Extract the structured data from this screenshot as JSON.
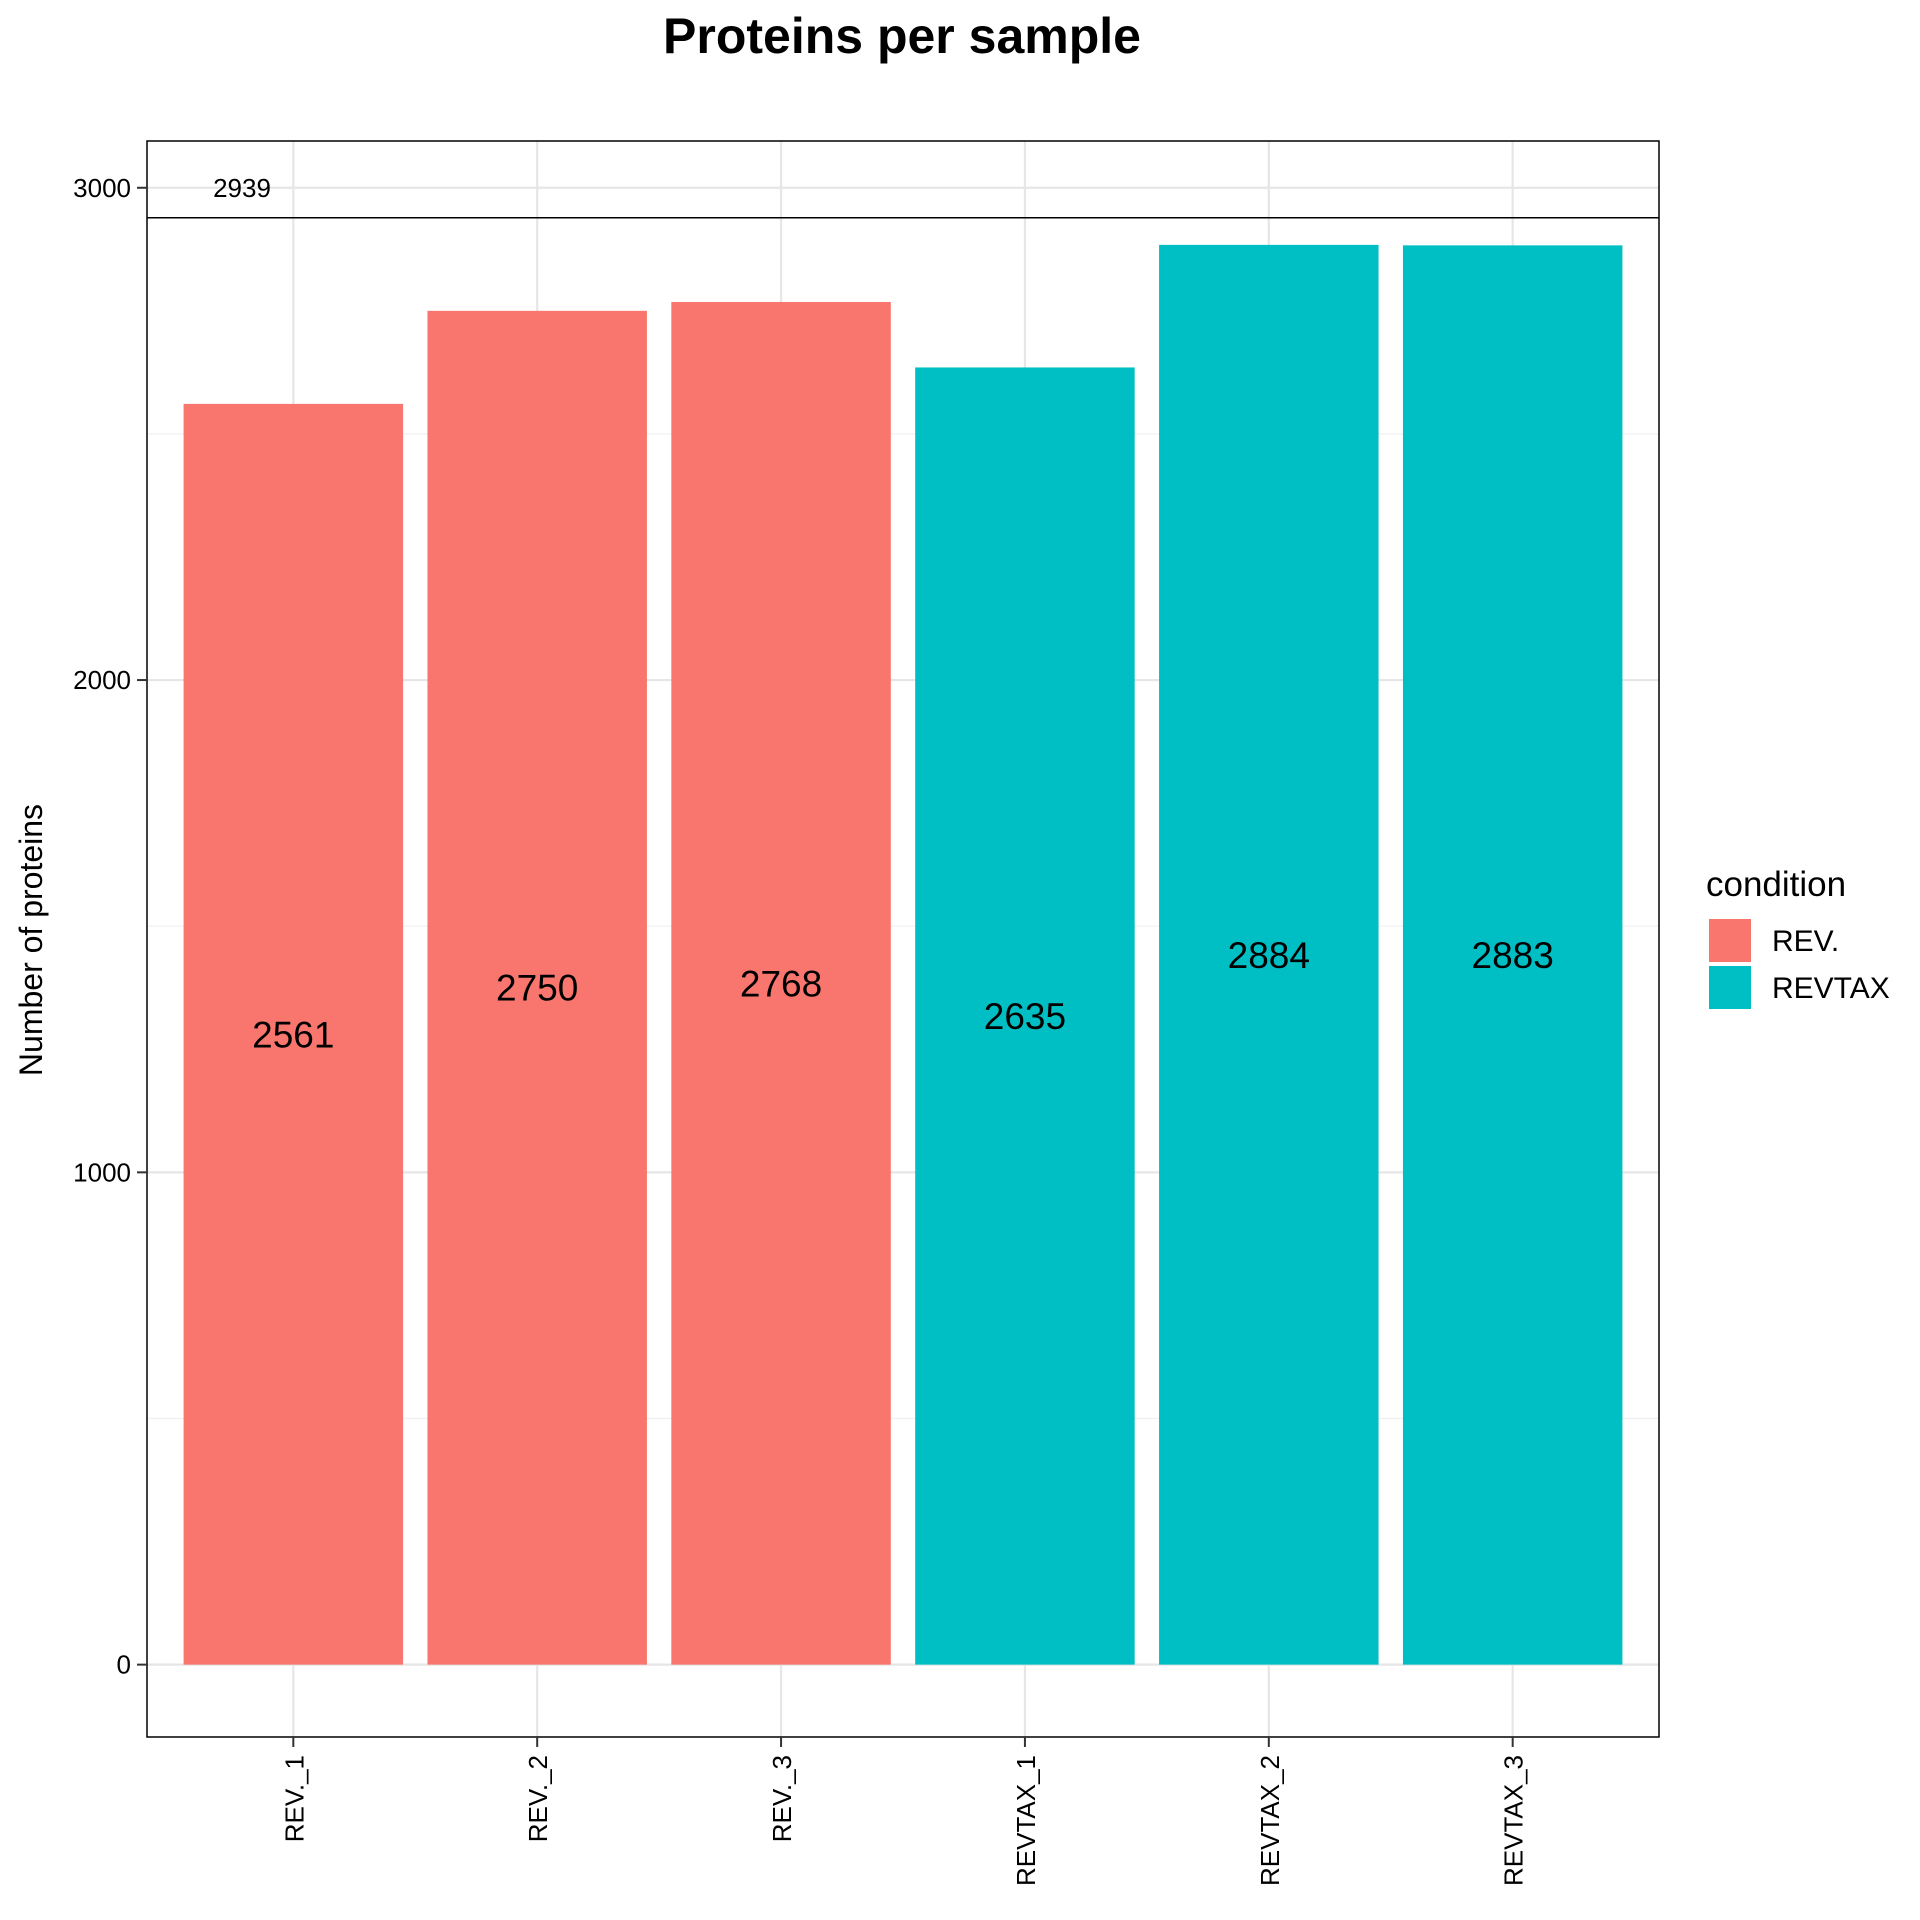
{
  "chart_data": {
    "type": "bar",
    "title": "Proteins per sample",
    "xlabel": "",
    "ylabel": "Number of proteins",
    "categories": [
      "REV._1",
      "REV._2",
      "REV._3",
      "REVTAX_1",
      "REVTAX_2",
      "REVTAX_3"
    ],
    "values": [
      2561,
      2750,
      2768,
      2635,
      2884,
      2883
    ],
    "condition": [
      "REV.",
      "REV.",
      "REV.",
      "REVTAX",
      "REVTAX",
      "REVTAX"
    ],
    "total_line": {
      "value": 2939,
      "label": "2939"
    },
    "ylim": [
      -147,
      3095
    ],
    "yticks": [
      0,
      1000,
      2000,
      3000
    ],
    "grid": true,
    "legend": {
      "title": "condition",
      "position": "right",
      "items": [
        {
          "label": "REV.",
          "color": "#F8766D"
        },
        {
          "label": "REVTAX",
          "color": "#00BFC4"
        }
      ]
    }
  }
}
